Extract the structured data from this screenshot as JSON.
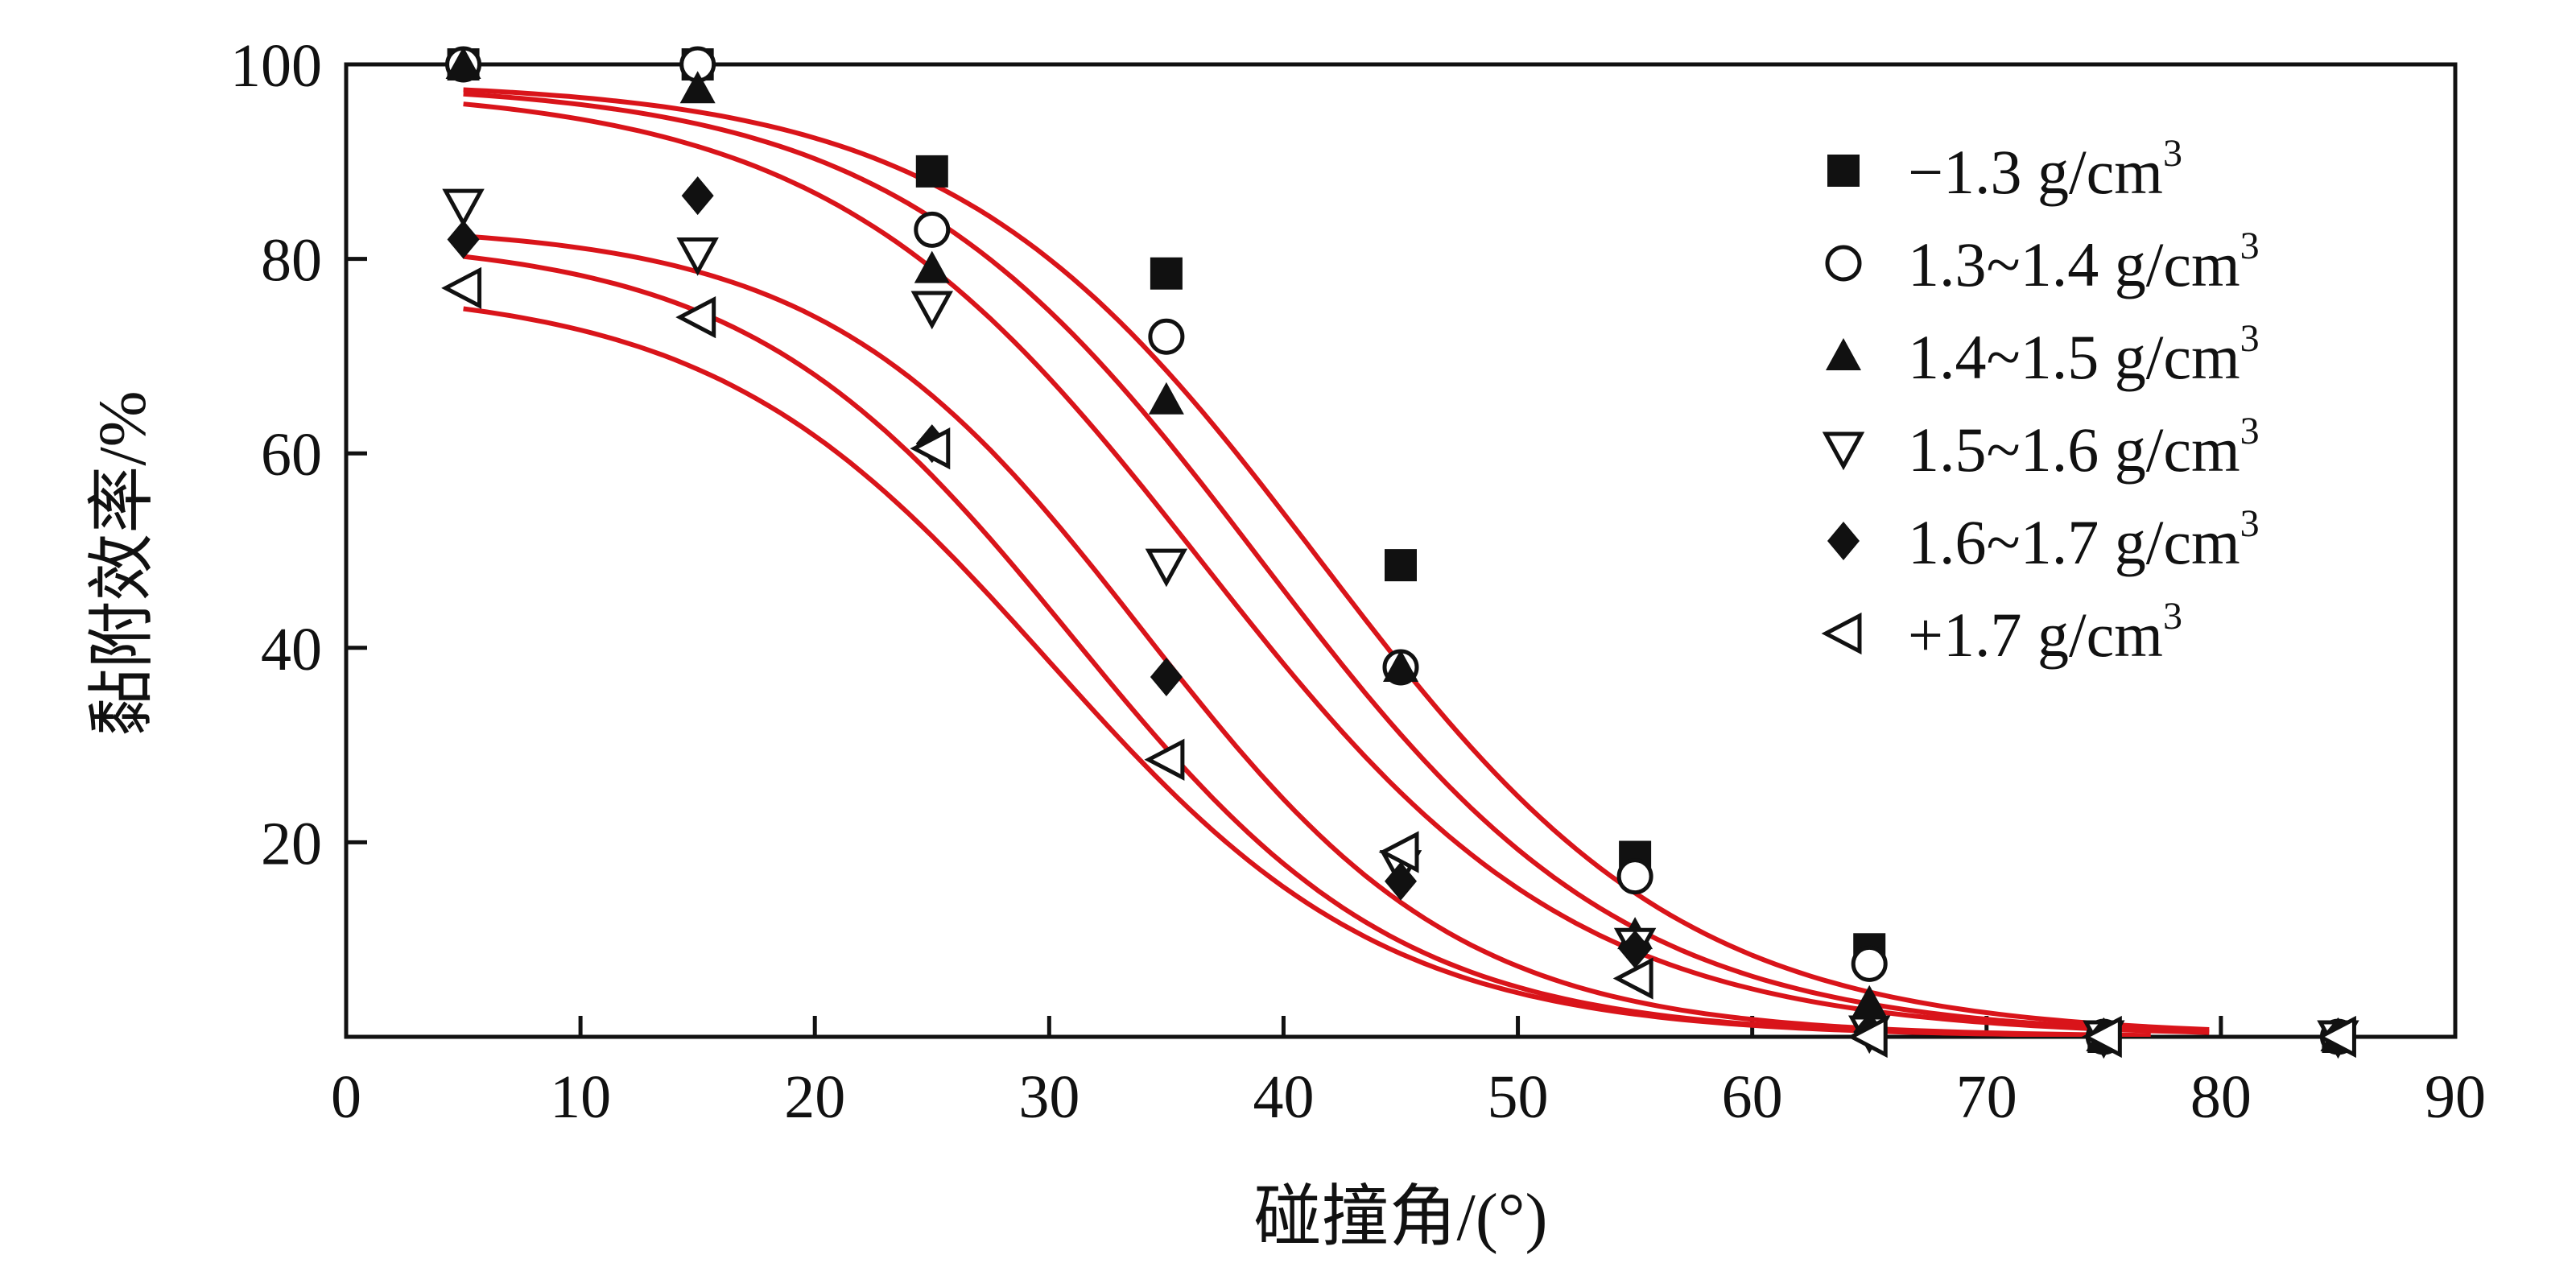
{
  "chart_data": {
    "type": "scatter",
    "title": "",
    "xlabel": "碰撞角/(°)",
    "ylabel": "黏附效率/%",
    "xlim": [
      0,
      90
    ],
    "ylim": [
      0,
      100
    ],
    "x_ticks": [
      "0",
      "10",
      "20",
      "30",
      "40",
      "50",
      "60",
      "70",
      "80",
      "90"
    ],
    "y_ticks": [
      "20",
      "40",
      "60",
      "80",
      "100"
    ],
    "grid": false,
    "legend_position": "top-right",
    "fit_curve_color": "#d9141a",
    "marker_color": "#111111",
    "x": [
      5,
      15,
      25,
      35,
      45,
      55,
      65,
      75,
      85
    ],
    "series": [
      {
        "name": "−1.3 g/cm",
        "name_sup": "3",
        "marker": "filled-square",
        "values": [
          100,
          100,
          89,
          78.5,
          48.5,
          18.5,
          9,
          0,
          0
        ],
        "fit": {
          "y0": 98.3,
          "x50": 41.5,
          "width": 7.8,
          "x_end": 79.5
        }
      },
      {
        "name": "1.3~1.4 g/cm",
        "name_sup": "3",
        "marker": "open-circle",
        "values": [
          100,
          100,
          83,
          72,
          38,
          16.5,
          7.5,
          0,
          0
        ],
        "fit": {
          "y0": 98.2,
          "x50": 39,
          "width": 7.8,
          "x_end": 79.5
        }
      },
      {
        "name": "1.4~1.5 g/cm",
        "name_sup": "3",
        "marker": "filled-triangle-up",
        "values": [
          100,
          97.5,
          79,
          65.5,
          38,
          10.5,
          3.5,
          0,
          0
        ],
        "fit": {
          "y0": 97.8,
          "x50": 36.5,
          "width": 8,
          "x_end": 79.5
        }
      },
      {
        "name": "1.5~1.6 g/cm",
        "name_sup": "3",
        "marker": "open-triangle-down",
        "values": [
          85.5,
          80.5,
          75,
          48.5,
          17.5,
          9.5,
          0.5,
          0,
          0
        ],
        "fit": {
          "y0": 83.5,
          "x50": 34,
          "width": 6.8,
          "x_end": 77
        }
      },
      {
        "name": "1.6~1.7 g/cm",
        "name_sup": "3",
        "marker": "filled-diamond",
        "values": [
          82,
          86.5,
          61,
          37,
          16,
          9,
          0.5,
          0,
          0
        ],
        "fit": {
          "y0": 82.2,
          "x50": 31,
          "width": 7,
          "x_end": 77
        }
      },
      {
        "name": "+1.7 g/cm",
        "name_sup": "3",
        "marker": "open-triangle-left",
        "values": [
          77,
          74,
          60.5,
          28.5,
          19,
          6,
          0,
          0,
          0
        ],
        "fit": {
          "y0": 77.2,
          "x50": 30,
          "width": 7.2,
          "x_end": 77
        }
      }
    ]
  }
}
